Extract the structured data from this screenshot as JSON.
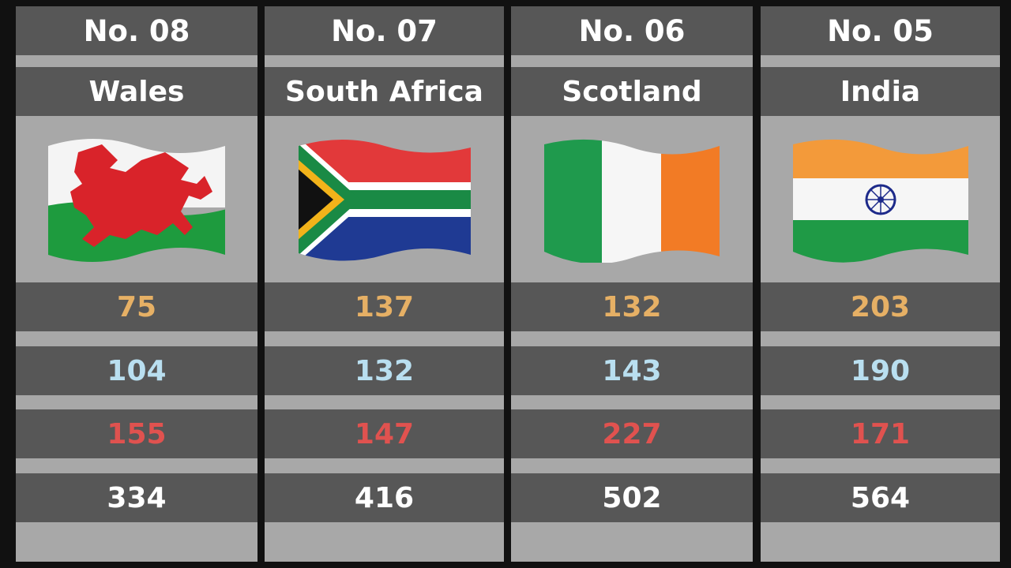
{
  "colors": {
    "value1": "#e6b065",
    "value2": "#b9dff0",
    "value3": "#e0524f",
    "value4": "#ffffff"
  },
  "columns": [
    {
      "rank": "No. 08",
      "country": "Wales",
      "flag": "wales-flag-icon",
      "values": [
        "75",
        "104",
        "155",
        "334"
      ]
    },
    {
      "rank": "No. 07",
      "country": "South Africa",
      "flag": "south-africa-flag-icon",
      "values": [
        "137",
        "132",
        "147",
        "416"
      ]
    },
    {
      "rank": "No. 06",
      "country": "Scotland",
      "flag": "ireland-flag-icon",
      "values": [
        "132",
        "143",
        "227",
        "502"
      ]
    },
    {
      "rank": "No. 05",
      "country": "India",
      "flag": "india-flag-icon",
      "values": [
        "203",
        "190",
        "171",
        "564"
      ]
    }
  ]
}
